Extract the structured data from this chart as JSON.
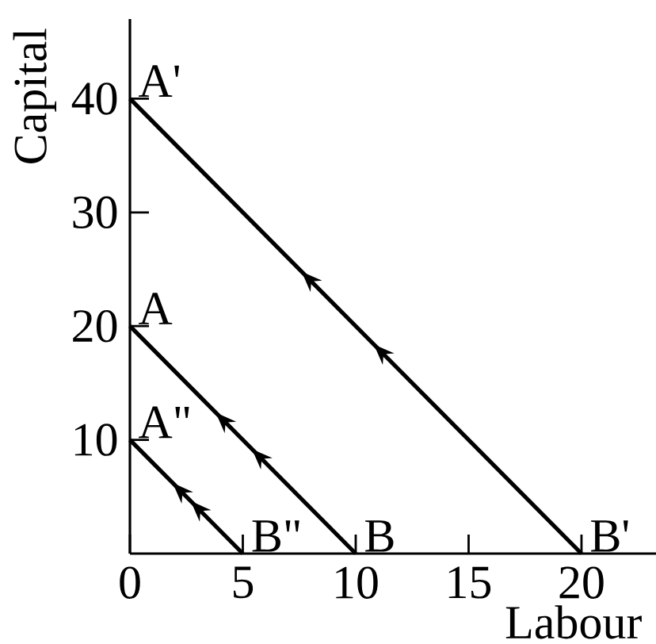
{
  "chart_data": {
    "type": "line",
    "xlabel": "Labour",
    "ylabel": "Capital",
    "xlim": [
      0,
      23.3
    ],
    "ylim": [
      0,
      47
    ],
    "xticks": [
      0,
      5,
      10,
      15,
      20
    ],
    "yticks": [
      10,
      20,
      30,
      40
    ],
    "line_style": "solid",
    "series": [
      {
        "color": "#000000",
        "x": [
          0,
          20
        ],
        "values": [
          40,
          0
        ]
      },
      {
        "color": "#000000",
        "x": [
          0,
          10
        ],
        "values": [
          20,
          0
        ]
      },
      {
        "color": "#000000",
        "x": [
          0,
          5
        ],
        "values": [
          10,
          0
        ]
      }
    ],
    "annotations": [
      {
        "text": "A'",
        "x": 0,
        "y": 40
      },
      {
        "text": "A",
        "x": 0,
        "y": 20
      },
      {
        "text": "A\"",
        "x": 0,
        "y": 10
      },
      {
        "text": "B\"",
        "x": 5,
        "y": 0
      },
      {
        "text": "B",
        "x": 10,
        "y": 0
      },
      {
        "text": "B'",
        "x": 20,
        "y": 0
      }
    ]
  }
}
